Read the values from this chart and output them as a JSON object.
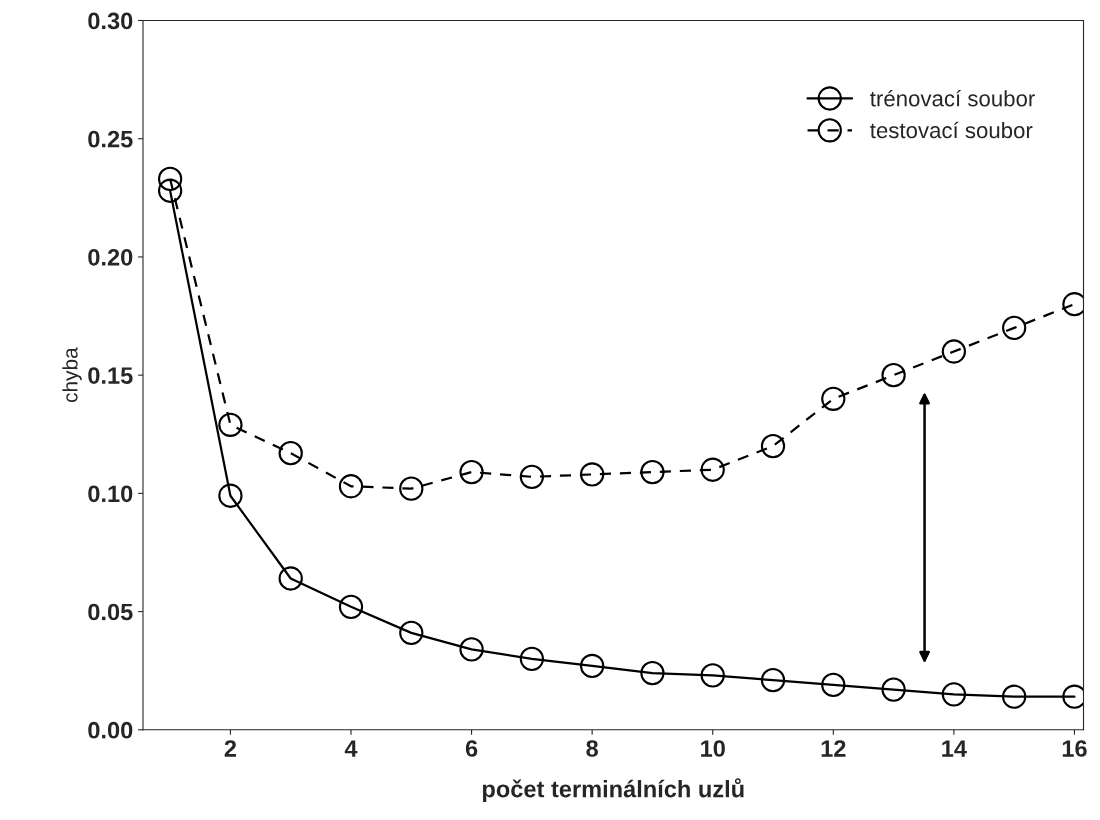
{
  "chart_data": {
    "type": "line",
    "xlabel": "počet terminálních uzlů",
    "ylabel": "chyba",
    "x": [
      1,
      2,
      3,
      4,
      5,
      6,
      7,
      8,
      9,
      10,
      11,
      12,
      13,
      14,
      15,
      16
    ],
    "series": [
      {
        "name": "trénovací soubor",
        "color": "#000000",
        "line_style": "solid",
        "values": [
          0.228,
          0.099,
          0.064,
          0.052,
          0.041,
          0.034,
          0.03,
          0.027,
          0.024,
          0.023,
          0.021,
          0.019,
          0.017,
          0.015,
          0.014,
          0.014
        ]
      },
      {
        "name": "testovací soubor",
        "color": "#000000",
        "line_style": "dashed",
        "values": [
          0.233,
          0.129,
          0.117,
          0.103,
          0.102,
          0.109,
          0.107,
          0.108,
          0.109,
          0.11,
          0.12,
          0.14,
          0.15,
          0.16,
          0.17,
          0.18
        ]
      }
    ],
    "xlim": [
      0.55,
      16.15
    ],
    "xticks": [
      2,
      4,
      6,
      8,
      10,
      12,
      14,
      16
    ],
    "ylim": [
      0,
      0.3
    ],
    "yticks": [
      {
        "value": 0,
        "label": "0.00"
      },
      {
        "value": 0.05,
        "label": "0.05"
      },
      {
        "value": 0.1,
        "label": "0.10"
      },
      {
        "value": 0.15,
        "label": "0.15"
      },
      {
        "value": 0.2,
        "label": "0.20"
      },
      {
        "value": 0.25,
        "label": "0.25"
      },
      {
        "value": 0.3,
        "label": "0.30"
      }
    ],
    "marker": "circle",
    "legend": "top right",
    "grid": false
  }
}
